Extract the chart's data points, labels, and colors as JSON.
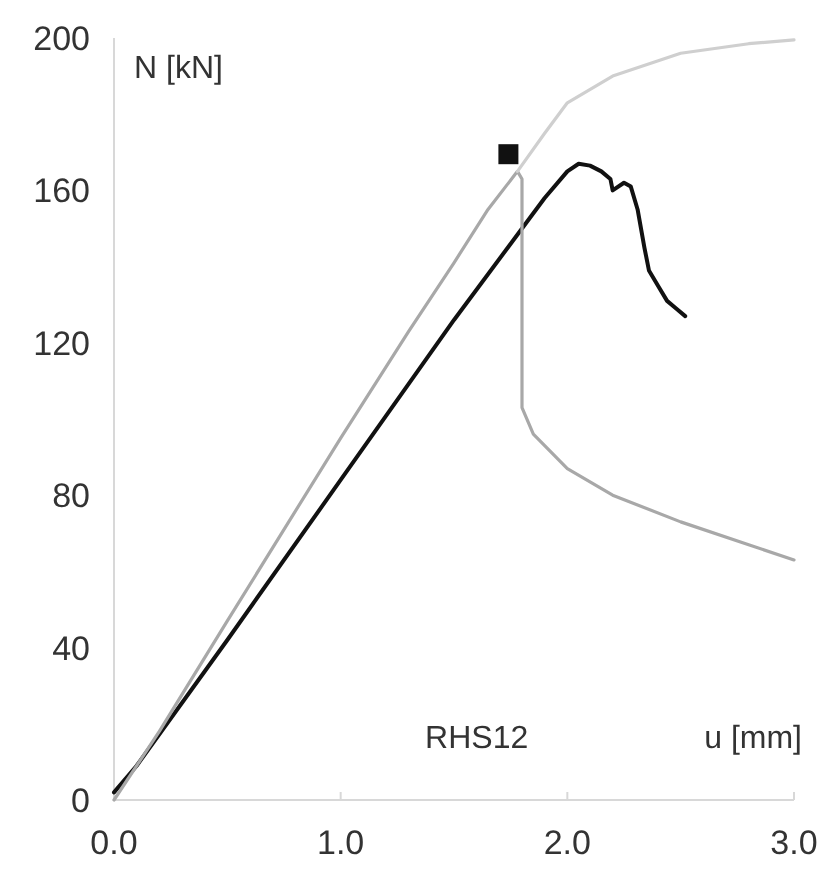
{
  "chart_data": {
    "type": "line",
    "xlabel": "u [mm]",
    "ylabel": "N [kN]",
    "annotations": [
      "RHS12"
    ],
    "xlim": [
      0,
      3
    ],
    "xticks": [
      {
        "value": 0,
        "label": "0.0"
      },
      {
        "value": 1,
        "label": "1.0"
      },
      {
        "value": 2,
        "label": "2.0"
      },
      {
        "value": 3,
        "label": "3.0"
      }
    ],
    "ylim": [
      0,
      200
    ],
    "yticks": [
      0,
      40,
      80,
      120,
      160,
      200
    ],
    "grid": false,
    "marker": "none",
    "line_style": "solid",
    "series": [
      {
        "color": "#111111",
        "x": [
          0,
          0.1,
          0.5,
          1.0,
          1.5,
          1.8,
          1.9,
          2.0,
          2.05,
          2.1,
          2.15,
          2.19,
          2.2,
          2.25,
          2.28,
          2.31,
          2.34,
          2.36,
          2.4,
          2.44,
          2.48,
          2.52
        ],
        "values": [
          2,
          9,
          42,
          84,
          126,
          150,
          158,
          165,
          167,
          166.5,
          165,
          163,
          160,
          162,
          161,
          155,
          145,
          139,
          135,
          131,
          129,
          127
        ]
      },
      {
        "color": "#a8a8a8",
        "x": [
          0,
          0.2,
          0.5,
          1.0,
          1.3,
          1.5,
          1.65,
          1.78,
          1.8,
          1.8,
          1.85,
          2.0,
          2.2,
          2.5,
          2.8,
          3.0
        ],
        "values": [
          0,
          18,
          47,
          95,
          123,
          141,
          155,
          165,
          163,
          103,
          96,
          87,
          80,
          73,
          67,
          63
        ]
      },
      {
        "color": "#cfcfcf",
        "x": [
          1.78,
          1.9,
          2.0,
          2.2,
          2.5,
          2.8,
          3.0
        ],
        "values": [
          165,
          175,
          183,
          190,
          196,
          198.5,
          199.5
        ]
      },
      {
        "type": "scatter",
        "marker": "square",
        "color": "#111111",
        "x": [
          1.74
        ],
        "values": [
          169.5
        ]
      }
    ]
  }
}
